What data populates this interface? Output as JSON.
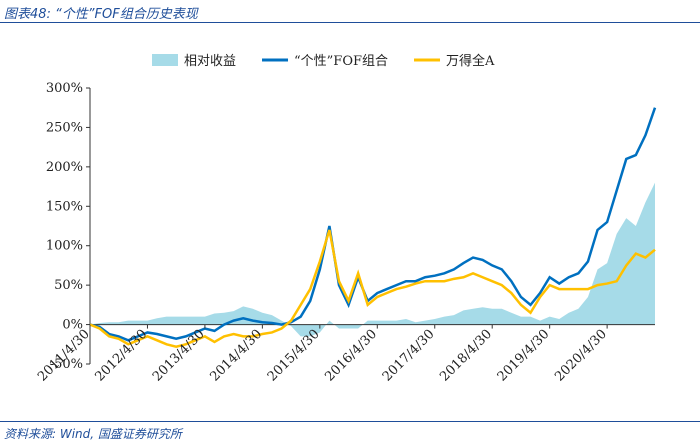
{
  "header": "图表48: “个性”FOF组合历史表现",
  "source": "资料来源: Wind, 国盛证券研究所",
  "chart_data": {
    "type": "line",
    "categories": [
      "2011/4/30",
      null,
      null,
      null,
      null,
      null,
      "2012/4/30",
      null,
      null,
      null,
      null,
      null,
      "2013/4/30",
      null,
      null,
      null,
      null,
      null,
      "2014/4/30",
      null,
      null,
      null,
      null,
      null,
      "2015/4/30",
      null,
      null,
      null,
      null,
      null,
      "2016/4/30",
      null,
      null,
      null,
      null,
      null,
      "2017/4/30",
      null,
      null,
      null,
      null,
      null,
      "2018/4/30",
      null,
      null,
      null,
      null,
      null,
      "2019/4/30",
      null,
      null,
      null,
      null,
      null,
      "2020/4/30",
      null,
      null,
      null,
      null,
      null
    ],
    "series": [
      {
        "name": "相对收益",
        "color": "#a6dbe8",
        "style": "area",
        "values": [
          0,
          2,
          3,
          3,
          5,
          5,
          5,
          8,
          10,
          10,
          10,
          10,
          10,
          14,
          15,
          17,
          23,
          20,
          15,
          12,
          5,
          -2,
          -15,
          -15,
          -10,
          5,
          -5,
          -5,
          -5,
          5,
          5,
          5,
          5,
          7,
          3,
          5,
          7,
          10,
          12,
          18,
          20,
          22,
          20,
          20,
          15,
          10,
          10,
          5,
          10,
          7,
          15,
          20,
          35,
          70,
          78,
          115,
          135,
          125,
          155,
          180
        ]
      },
      {
        "name": "“个性”FOF组合",
        "color": "#0070c0",
        "style": "line",
        "values": [
          0,
          -3,
          -12,
          -15,
          -20,
          -15,
          -10,
          -12,
          -15,
          -18,
          -15,
          -10,
          -5,
          -8,
          0,
          5,
          8,
          5,
          3,
          2,
          0,
          3,
          10,
          30,
          70,
          125,
          50,
          25,
          60,
          30,
          40,
          45,
          50,
          55,
          55,
          60,
          62,
          65,
          70,
          78,
          85,
          82,
          75,
          70,
          55,
          35,
          25,
          40,
          60,
          52,
          60,
          65,
          80,
          120,
          130,
          170,
          210,
          215,
          240,
          275
        ]
      },
      {
        "name": "万得全A",
        "color": "#ffc000",
        "style": "line",
        "values": [
          0,
          -5,
          -15,
          -18,
          -25,
          -20,
          -15,
          -20,
          -25,
          -28,
          -25,
          -20,
          -15,
          -22,
          -15,
          -12,
          -15,
          -15,
          -12,
          -10,
          -5,
          5,
          25,
          45,
          80,
          120,
          55,
          30,
          65,
          25,
          35,
          40,
          45,
          48,
          52,
          55,
          55,
          55,
          58,
          60,
          65,
          60,
          55,
          50,
          40,
          25,
          15,
          35,
          50,
          45,
          45,
          45,
          45,
          50,
          52,
          55,
          75,
          90,
          85,
          95
        ]
      }
    ],
    "ylim": [
      -50,
      300
    ],
    "yticks": [
      {
        "value": -50,
        "label": "-50%"
      },
      {
        "value": 0,
        "label": "0%"
      },
      {
        "value": 50,
        "label": "50%"
      },
      {
        "value": 100,
        "label": "100%"
      },
      {
        "value": 150,
        "label": "150%"
      },
      {
        "value": 200,
        "label": "200%"
      },
      {
        "value": 250,
        "label": "250%"
      },
      {
        "value": 300,
        "label": "300%"
      }
    ],
    "legend": "top"
  }
}
